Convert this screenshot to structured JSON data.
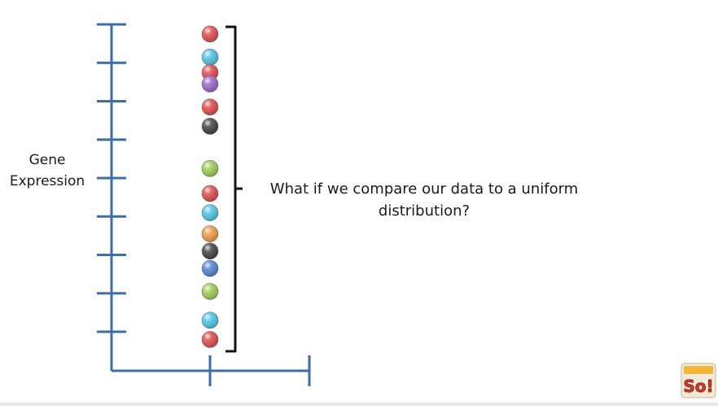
{
  "axis": {
    "ylabel_lines": [
      "Gene",
      "Expression"
    ],
    "y_tick_count": 9,
    "x_tick_count": 2
  },
  "callout": {
    "lines": [
      "What if we compare our data to a uniform",
      "distribution?"
    ]
  },
  "colors": {
    "axis": "#3d6ea7",
    "bracket": "#111111",
    "red": "#e04e4e",
    "cyan": "#4fc7e3",
    "purple": "#9a6ac9",
    "black": "#444444",
    "green": "#9fce55",
    "orange": "#f09b4b",
    "blue": "#5384d8"
  },
  "chart_data": {
    "type": "scatter",
    "title": "",
    "xlabel": "",
    "ylabel": "Gene Expression",
    "ylim": [
      0,
      8
    ],
    "grid": false,
    "points": [
      {
        "y": 7.75,
        "color": "red"
      },
      {
        "y": 7.15,
        "color": "cyan"
      },
      {
        "y": 6.75,
        "color": "red"
      },
      {
        "y": 6.45,
        "color": "purple"
      },
      {
        "y": 5.85,
        "color": "red"
      },
      {
        "y": 5.35,
        "color": "black"
      },
      {
        "y": 4.25,
        "color": "green"
      },
      {
        "y": 3.6,
        "color": "red"
      },
      {
        "y": 3.1,
        "color": "cyan"
      },
      {
        "y": 2.55,
        "color": "orange"
      },
      {
        "y": 2.1,
        "color": "black"
      },
      {
        "y": 1.65,
        "color": "blue"
      },
      {
        "y": 1.05,
        "color": "green"
      },
      {
        "y": 0.3,
        "color": "cyan"
      },
      {
        "y": -0.2,
        "color": "red"
      }
    ]
  },
  "logo": {
    "text": "So!"
  }
}
